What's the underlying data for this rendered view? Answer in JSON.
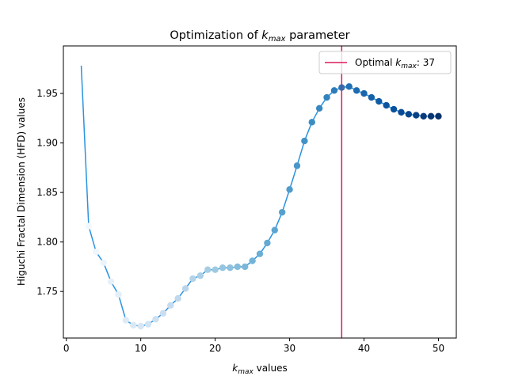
{
  "chart_data": {
    "type": "line",
    "title_prefix": "Optimization of ",
    "title_var_main": "k",
    "title_var_sub": "max",
    "title_suffix": " parameter",
    "xlabel_var_main": "k",
    "xlabel_var_sub": "max",
    "xlabel_suffix": " values",
    "ylabel": "Higuchi Fractal Dimension (HFD) values",
    "xlim": [
      -0.4,
      52.4
    ],
    "ylim": [
      1.703,
      1.998
    ],
    "xticks": [
      0,
      10,
      20,
      30,
      40,
      50
    ],
    "yticks": [
      1.75,
      1.8,
      1.85,
      1.9,
      1.95
    ],
    "ytick_labels": [
      "1.75",
      "1.80",
      "1.85",
      "1.90",
      "1.95"
    ],
    "grid": false,
    "line_color": "#2a93e0",
    "marker_colormap": "Blues",
    "vline_color": "#dc1c5a",
    "legend": {
      "placement": "top-right",
      "prefix": "Optimal ",
      "var_main": "k",
      "var_sub": "max",
      "suffix": ": 37"
    },
    "optimal_kmax": 37,
    "series": [
      {
        "x": [
          2,
          3,
          4,
          5,
          6,
          7,
          8,
          9,
          10,
          11,
          12,
          13,
          14,
          15,
          16,
          17,
          18,
          19,
          20,
          21,
          22,
          23,
          24,
          25,
          26,
          27,
          28,
          29,
          30,
          31,
          32,
          33,
          34,
          35,
          36,
          37,
          38,
          39,
          40,
          41,
          42,
          43,
          44,
          45,
          46,
          47,
          48,
          49,
          50
        ],
        "values": [
          1.978,
          1.816,
          1.79,
          1.779,
          1.76,
          1.747,
          1.721,
          1.716,
          1.715,
          1.717,
          1.722,
          1.728,
          1.736,
          1.743,
          1.753,
          1.763,
          1.766,
          1.772,
          1.772,
          1.774,
          1.774,
          1.775,
          1.775,
          1.781,
          1.788,
          1.799,
          1.812,
          1.83,
          1.853,
          1.877,
          1.902,
          1.921,
          1.935,
          1.946,
          1.953,
          1.956,
          1.957,
          1.953,
          1.95,
          1.946,
          1.942,
          1.938,
          1.934,
          1.931,
          1.929,
          1.928,
          1.927,
          1.927,
          1.927
        ]
      }
    ]
  }
}
